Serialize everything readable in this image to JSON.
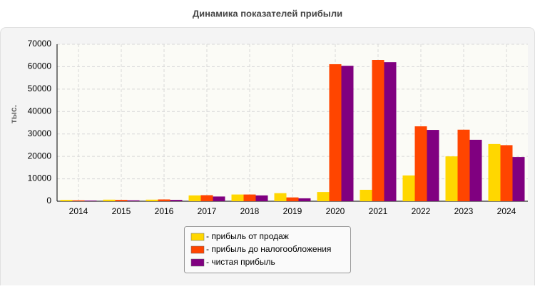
{
  "chart_data": {
    "type": "bar",
    "title": "Динамика показателей прибыли",
    "y_label": "тыс.",
    "categories": [
      "2014",
      "2015",
      "2016",
      "2017",
      "2018",
      "2019",
      "2020",
      "2021",
      "2022",
      "2023",
      "2024"
    ],
    "series": [
      {
        "name": "- прибыль от продаж",
        "color": "#ffd700",
        "values": [
          600,
          700,
          700,
          2600,
          3000,
          3600,
          4100,
          5100,
          11500,
          20000,
          25500
        ]
      },
      {
        "name": "- прибыль до налогообложения",
        "color": "#ff4500",
        "values": [
          400,
          600,
          800,
          2700,
          3000,
          1700,
          61100,
          63000,
          33400,
          31900,
          25000
        ]
      },
      {
        "name": "- чистая прибыль",
        "color": "#800080",
        "values": [
          300,
          400,
          600,
          2100,
          2600,
          1300,
          60400,
          62000,
          31800,
          27400,
          19700
        ]
      }
    ],
    "ylim": [
      0,
      70000
    ],
    "yticks": [
      0,
      10000,
      20000,
      30000,
      40000,
      50000,
      60000,
      70000
    ],
    "grid": true
  }
}
